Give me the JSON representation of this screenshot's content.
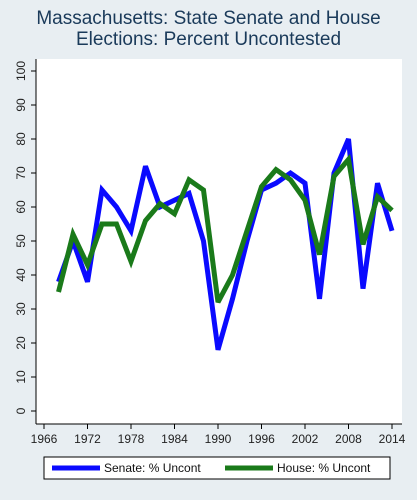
{
  "chart_data": {
    "type": "line",
    "title_line1": "Massachusetts: State Senate and House",
    "title_line2": "Elections: Percent Uncontested",
    "xlabel": "",
    "ylabel": "",
    "xlim": [
      1964,
      2016
    ],
    "ylim": [
      0,
      100
    ],
    "x_ticks": [
      1966,
      1972,
      1978,
      1984,
      1990,
      1996,
      2002,
      2008,
      2014
    ],
    "y_ticks": [
      0,
      10,
      20,
      30,
      40,
      50,
      60,
      70,
      80,
      90,
      100
    ],
    "grid": false,
    "legend_position": "bottom",
    "series": [
      {
        "name": "Senate: % Uncont",
        "color": "#0a0aff",
        "x": [
          1968,
          1970,
          1972,
          1974,
          1976,
          1978,
          1980,
          1982,
          1984,
          1986,
          1988,
          1990,
          1992,
          1994,
          1996,
          1998,
          2000,
          2002,
          2004,
          2006,
          2008,
          2010,
          2012,
          2014
        ],
        "values": [
          38,
          50,
          38,
          65,
          60,
          53,
          72,
          60,
          62,
          64,
          50,
          18,
          33,
          50,
          65,
          67,
          70,
          67,
          33,
          70,
          80,
          36,
          67,
          53
        ]
      },
      {
        "name": "House: % Uncont",
        "color": "#1a7a1a",
        "x": [
          1968,
          1970,
          1972,
          1974,
          1976,
          1978,
          1980,
          1982,
          1984,
          1986,
          1988,
          1990,
          1992,
          1994,
          1996,
          1998,
          2000,
          2002,
          2004,
          2006,
          2008,
          2010,
          2012,
          2014
        ],
        "values": [
          35,
          52,
          43,
          55,
          55,
          44,
          56,
          61,
          58,
          68,
          65,
          32,
          40,
          53,
          66,
          71,
          68,
          62,
          46,
          69,
          74,
          49,
          63,
          59
        ]
      }
    ]
  }
}
